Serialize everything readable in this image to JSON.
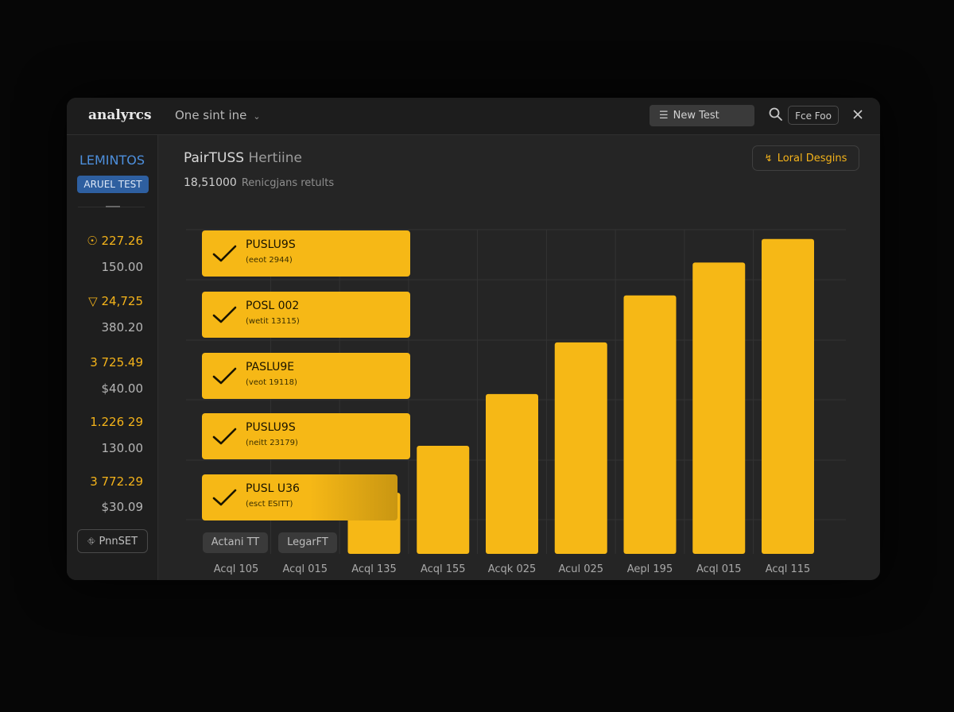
{
  "app": {
    "title": "analyrcs",
    "selector": "One sint ine",
    "new_test_label": "New Test",
    "fee_button": "Fce Foo"
  },
  "sidebar": {
    "brand": "LEMINTOS",
    "tag": "ARUEL TEST",
    "metrics": [
      {
        "value": "227.26",
        "sub": "150.00",
        "icon": "coin-icon"
      },
      {
        "value": "24,725",
        "sub": "380.20",
        "icon": "triangle-down-icon"
      },
      {
        "value": "3 725.49",
        "sub": "$40.00",
        "icon": ""
      },
      {
        "value": "1.226 29",
        "sub": "130.00",
        "icon": ""
      },
      {
        "value": "3 772.29",
        "sub": "$30.09",
        "icon": ""
      }
    ],
    "preset_label": "PnnSET"
  },
  "main": {
    "title": "PairTUSS",
    "subtitle": "Hertiine",
    "summary_value": "18,51000",
    "summary_text": "Renicgjans retults",
    "local_button": "Loral Desgins"
  },
  "results": [
    {
      "name": "PUSLU9S",
      "sub": "(eeot 2944)"
    },
    {
      "name": "POSL 002",
      "sub": "(wetit 13115)"
    },
    {
      "name": "PASLU9E",
      "sub": "(veot 19118)"
    },
    {
      "name": "PUSLU9S",
      "sub": "(neitt 23179)"
    },
    {
      "name": "PUSL U36",
      "sub": "(esct ESITT)"
    }
  ],
  "chips": [
    "Actani TT",
    "LegarFT"
  ],
  "colors": {
    "accent": "#f6b816",
    "link": "#4d8fdc",
    "background": "#252525"
  },
  "chart_data": {
    "type": "bar",
    "categories": [
      "Acql 105",
      "Acql 015",
      "Acql 135",
      "Acql 155",
      "Acqk 025",
      "Acul 025",
      "Aepl 195",
      "Acql 015",
      "Acql 115"
    ],
    "values": [
      null,
      null,
      1.3,
      2.3,
      3.4,
      4.5,
      5.5,
      6.2,
      6.7
    ],
    "ylim": [
      0,
      7
    ],
    "grid": true
  }
}
